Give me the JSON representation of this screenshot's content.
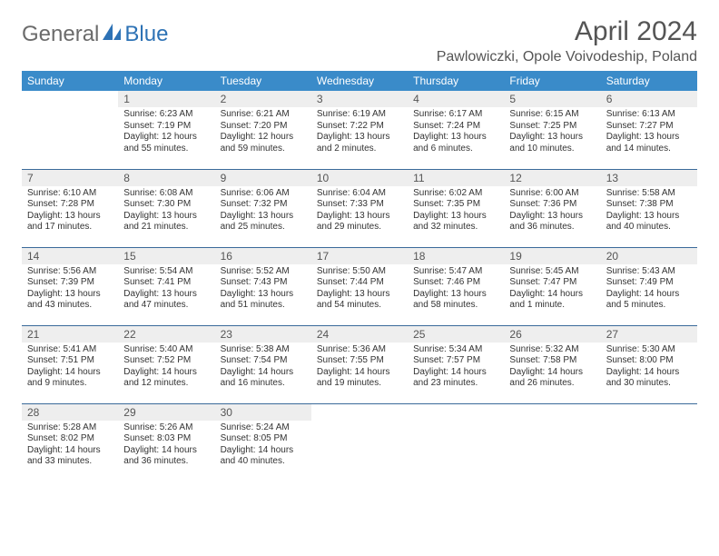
{
  "logo": {
    "general": "General",
    "blue": "Blue"
  },
  "title": "April 2024",
  "location": "Pawlowiczki, Opole Voivodeship, Poland",
  "colors": {
    "header_bg": "#3a8bc9",
    "header_fg": "#ffffff",
    "daynum_bg": "#eeeeee",
    "rule": "#3a6a9a",
    "logo_gray": "#6b6b6b",
    "logo_blue": "#2d72b5"
  },
  "day_headers": [
    "Sunday",
    "Monday",
    "Tuesday",
    "Wednesday",
    "Thursday",
    "Friday",
    "Saturday"
  ],
  "weeks": [
    [
      {
        "n": "",
        "sr": "",
        "ss": "",
        "dl": ""
      },
      {
        "n": "1",
        "sr": "Sunrise: 6:23 AM",
        "ss": "Sunset: 7:19 PM",
        "dl": "Daylight: 12 hours and 55 minutes."
      },
      {
        "n": "2",
        "sr": "Sunrise: 6:21 AM",
        "ss": "Sunset: 7:20 PM",
        "dl": "Daylight: 12 hours and 59 minutes."
      },
      {
        "n": "3",
        "sr": "Sunrise: 6:19 AM",
        "ss": "Sunset: 7:22 PM",
        "dl": "Daylight: 13 hours and 2 minutes."
      },
      {
        "n": "4",
        "sr": "Sunrise: 6:17 AM",
        "ss": "Sunset: 7:24 PM",
        "dl": "Daylight: 13 hours and 6 minutes."
      },
      {
        "n": "5",
        "sr": "Sunrise: 6:15 AM",
        "ss": "Sunset: 7:25 PM",
        "dl": "Daylight: 13 hours and 10 minutes."
      },
      {
        "n": "6",
        "sr": "Sunrise: 6:13 AM",
        "ss": "Sunset: 7:27 PM",
        "dl": "Daylight: 13 hours and 14 minutes."
      }
    ],
    [
      {
        "n": "7",
        "sr": "Sunrise: 6:10 AM",
        "ss": "Sunset: 7:28 PM",
        "dl": "Daylight: 13 hours and 17 minutes."
      },
      {
        "n": "8",
        "sr": "Sunrise: 6:08 AM",
        "ss": "Sunset: 7:30 PM",
        "dl": "Daylight: 13 hours and 21 minutes."
      },
      {
        "n": "9",
        "sr": "Sunrise: 6:06 AM",
        "ss": "Sunset: 7:32 PM",
        "dl": "Daylight: 13 hours and 25 minutes."
      },
      {
        "n": "10",
        "sr": "Sunrise: 6:04 AM",
        "ss": "Sunset: 7:33 PM",
        "dl": "Daylight: 13 hours and 29 minutes."
      },
      {
        "n": "11",
        "sr": "Sunrise: 6:02 AM",
        "ss": "Sunset: 7:35 PM",
        "dl": "Daylight: 13 hours and 32 minutes."
      },
      {
        "n": "12",
        "sr": "Sunrise: 6:00 AM",
        "ss": "Sunset: 7:36 PM",
        "dl": "Daylight: 13 hours and 36 minutes."
      },
      {
        "n": "13",
        "sr": "Sunrise: 5:58 AM",
        "ss": "Sunset: 7:38 PM",
        "dl": "Daylight: 13 hours and 40 minutes."
      }
    ],
    [
      {
        "n": "14",
        "sr": "Sunrise: 5:56 AM",
        "ss": "Sunset: 7:39 PM",
        "dl": "Daylight: 13 hours and 43 minutes."
      },
      {
        "n": "15",
        "sr": "Sunrise: 5:54 AM",
        "ss": "Sunset: 7:41 PM",
        "dl": "Daylight: 13 hours and 47 minutes."
      },
      {
        "n": "16",
        "sr": "Sunrise: 5:52 AM",
        "ss": "Sunset: 7:43 PM",
        "dl": "Daylight: 13 hours and 51 minutes."
      },
      {
        "n": "17",
        "sr": "Sunrise: 5:50 AM",
        "ss": "Sunset: 7:44 PM",
        "dl": "Daylight: 13 hours and 54 minutes."
      },
      {
        "n": "18",
        "sr": "Sunrise: 5:47 AM",
        "ss": "Sunset: 7:46 PM",
        "dl": "Daylight: 13 hours and 58 minutes."
      },
      {
        "n": "19",
        "sr": "Sunrise: 5:45 AM",
        "ss": "Sunset: 7:47 PM",
        "dl": "Daylight: 14 hours and 1 minute."
      },
      {
        "n": "20",
        "sr": "Sunrise: 5:43 AM",
        "ss": "Sunset: 7:49 PM",
        "dl": "Daylight: 14 hours and 5 minutes."
      }
    ],
    [
      {
        "n": "21",
        "sr": "Sunrise: 5:41 AM",
        "ss": "Sunset: 7:51 PM",
        "dl": "Daylight: 14 hours and 9 minutes."
      },
      {
        "n": "22",
        "sr": "Sunrise: 5:40 AM",
        "ss": "Sunset: 7:52 PM",
        "dl": "Daylight: 14 hours and 12 minutes."
      },
      {
        "n": "23",
        "sr": "Sunrise: 5:38 AM",
        "ss": "Sunset: 7:54 PM",
        "dl": "Daylight: 14 hours and 16 minutes."
      },
      {
        "n": "24",
        "sr": "Sunrise: 5:36 AM",
        "ss": "Sunset: 7:55 PM",
        "dl": "Daylight: 14 hours and 19 minutes."
      },
      {
        "n": "25",
        "sr": "Sunrise: 5:34 AM",
        "ss": "Sunset: 7:57 PM",
        "dl": "Daylight: 14 hours and 23 minutes."
      },
      {
        "n": "26",
        "sr": "Sunrise: 5:32 AM",
        "ss": "Sunset: 7:58 PM",
        "dl": "Daylight: 14 hours and 26 minutes."
      },
      {
        "n": "27",
        "sr": "Sunrise: 5:30 AM",
        "ss": "Sunset: 8:00 PM",
        "dl": "Daylight: 14 hours and 30 minutes."
      }
    ],
    [
      {
        "n": "28",
        "sr": "Sunrise: 5:28 AM",
        "ss": "Sunset: 8:02 PM",
        "dl": "Daylight: 14 hours and 33 minutes."
      },
      {
        "n": "29",
        "sr": "Sunrise: 5:26 AM",
        "ss": "Sunset: 8:03 PM",
        "dl": "Daylight: 14 hours and 36 minutes."
      },
      {
        "n": "30",
        "sr": "Sunrise: 5:24 AM",
        "ss": "Sunset: 8:05 PM",
        "dl": "Daylight: 14 hours and 40 minutes."
      },
      {
        "n": "",
        "sr": "",
        "ss": "",
        "dl": ""
      },
      {
        "n": "",
        "sr": "",
        "ss": "",
        "dl": ""
      },
      {
        "n": "",
        "sr": "",
        "ss": "",
        "dl": ""
      },
      {
        "n": "",
        "sr": "",
        "ss": "",
        "dl": ""
      }
    ]
  ]
}
